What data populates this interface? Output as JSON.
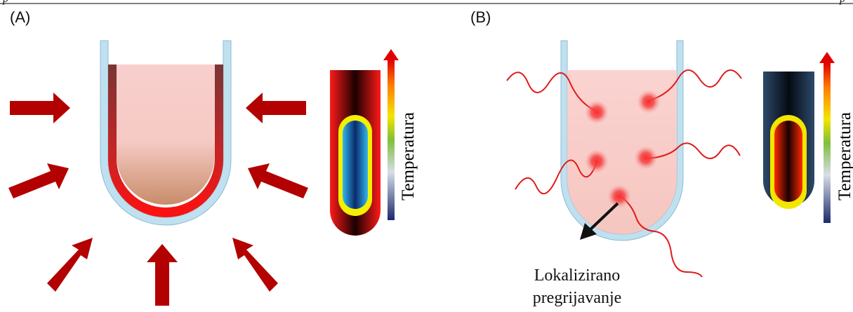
{
  "header": {
    "left_fragment": "p",
    "right_fragment": "p"
  },
  "panel_a": {
    "label": "(A)",
    "scale_label": "Temperatura"
  },
  "panel_b": {
    "label": "(B)",
    "scale_label": "Temperatura",
    "caption_line1": "Lokalizirano",
    "caption_line2": "pregrijavanje"
  },
  "colors": {
    "arrow_red": "#b30000",
    "glass": "#bfe0ef",
    "glass_edge": "#8dbbd3",
    "liquid_pink": "#f9d2d0",
    "hot_red": "#ff1a1a",
    "dark_navy": "#233a55"
  }
}
